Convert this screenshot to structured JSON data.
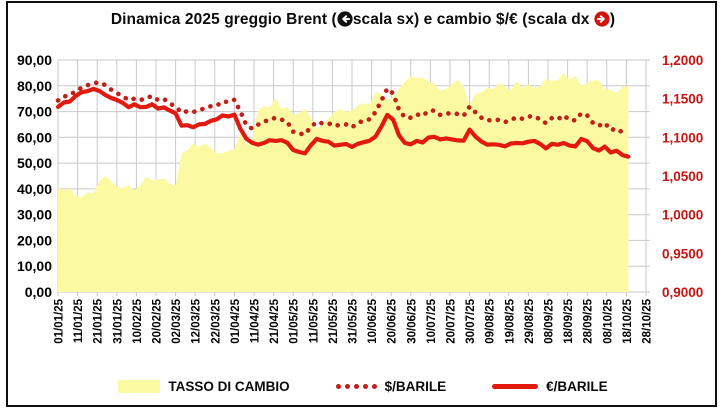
{
  "title": {
    "part1": "Dinamica 2025 greggio Brent (",
    "left_icon": "left-arrow-in-black-circle",
    "part2": "scala sx) e cambio $/€ (scala dx ",
    "right_icon": "right-arrow-in-red-circle",
    "part3": ")"
  },
  "colors": {
    "area": "#FBF9A1",
    "dollar_line": "#C02018",
    "euro_line": "#E2190E",
    "right_axis_text": "#C81412",
    "grid": "#C9C9C9",
    "frame": "#101010"
  },
  "legend": {
    "items": [
      {
        "label": "TASSO DI CAMBIO",
        "marker": "yellow-area"
      },
      {
        "label": "$/BARILE",
        "marker": "red-dotted-line"
      },
      {
        "label": "€/BARILE",
        "marker": "red-solid-line"
      }
    ]
  },
  "chart_data": {
    "type": "combo-area-and-lines",
    "title": "Dinamica 2025 greggio Brent (scala sx) e cambio $/€ (scala dx)",
    "grid": true,
    "legend_position": "bottom",
    "x_axis": {
      "unit": "date (dd/mm/yy), one tick every 10 days",
      "tick_labels": [
        "01/01/25",
        "11/01/25",
        "21/01/25",
        "31/01/25",
        "10/02/25",
        "20/02/25",
        "02/03/25",
        "12/03/25",
        "22/03/25",
        "01/04/25",
        "11/04/25",
        "21/04/25",
        "01/05/25",
        "11/05/25",
        "21/05/25",
        "31/05/25",
        "10/06/25",
        "20/06/25",
        "30/06/25",
        "10/07/25",
        "20/07/25",
        "30/07/25",
        "09/08/25",
        "19/08/25",
        "29/08/25",
        "08/09/25",
        "18/09/25",
        "28/09/25",
        "08/10/25",
        "18/10/25",
        "28/10/25"
      ]
    },
    "y_left": {
      "min": 0,
      "max": 90,
      "step": 10,
      "tick_values": [
        90,
        80,
        70,
        60,
        50,
        40,
        30,
        20,
        10,
        0
      ],
      "tick_labels": [
        "90,00",
        "80,00",
        "70,00",
        "60,00",
        "50,00",
        "40,00",
        "30,00",
        "20,00",
        "10,00",
        "0,00"
      ]
    },
    "y_right": {
      "min": 0.9,
      "max": 1.2,
      "step": 0.05,
      "tick_values": [
        1.2,
        1.15,
        1.1,
        1.05,
        1.0,
        0.95,
        0.9
      ],
      "tick_labels": [
        "1,2000",
        "1,1500",
        "1,1000",
        "1,0500",
        "1,0000",
        "0,9500",
        "0,9000"
      ]
    },
    "x_days": [
      0,
      3,
      6,
      9,
      12,
      15,
      18,
      21,
      24,
      27,
      30,
      33,
      36,
      39,
      42,
      45,
      48,
      51,
      54,
      57,
      60,
      63,
      66,
      69,
      72,
      75,
      78,
      81,
      84,
      87,
      90,
      93,
      96,
      99,
      102,
      105,
      108,
      111,
      114,
      117,
      120,
      123,
      126,
      129,
      132,
      135,
      138,
      141,
      144,
      147,
      150,
      153,
      156,
      159,
      162,
      165,
      168,
      171,
      174,
      177,
      180,
      183,
      186,
      189,
      192,
      195,
      198,
      201,
      204,
      207,
      210,
      213,
      216,
      219,
      222,
      225,
      228,
      231,
      234,
      237,
      240,
      243,
      246,
      249,
      252,
      255,
      258,
      261,
      264,
      267,
      270,
      273,
      276,
      279,
      282,
      285,
      288,
      291
    ],
    "series": [
      {
        "name": "TASSO DI CAMBIO",
        "axis": "right",
        "type": "area",
        "color": "#FBF9A1",
        "values": [
          1.0352,
          1.031,
          1.0345,
          1.0246,
          1.0225,
          1.029,
          1.0273,
          1.043,
          1.0495,
          1.0435,
          1.0364,
          1.0344,
          1.0385,
          1.0308,
          1.0382,
          1.049,
          1.0446,
          1.046,
          1.0466,
          1.04,
          1.0378,
          1.079,
          1.0836,
          1.092,
          1.0878,
          1.0923,
          1.0856,
          1.0796,
          1.0792,
          1.0828,
          1.085,
          1.105,
          1.0906,
          1.0956,
          1.135,
          1.14,
          1.139,
          1.151,
          1.1366,
          1.1392,
          1.1292,
          1.1306,
          1.1372,
          1.1252,
          1.112,
          1.1165,
          1.1242,
          1.1332,
          1.1366,
          1.1332,
          1.1348,
          1.1412,
          1.1442,
          1.1422,
          1.1582,
          1.1562,
          1.1482,
          1.1522,
          1.1622,
          1.1722,
          1.179,
          1.1762,
          1.1772,
          1.1722,
          1.1692,
          1.1602,
          1.1626,
          1.1692,
          1.1742,
          1.1662,
          1.1412,
          1.1562,
          1.1582,
          1.1642,
          1.1622,
          1.1702,
          1.1662,
          1.1602,
          1.1722,
          1.1642,
          1.1682,
          1.1642,
          1.1656,
          1.1762,
          1.1732,
          1.1736,
          1.1832,
          1.1746,
          1.1796,
          1.1666,
          1.1702,
          1.1736,
          1.1742,
          1.1622,
          1.1612,
          1.1572,
          1.1652,
          1.1662
        ]
      },
      {
        "name": "$/BARILE",
        "axis": "left",
        "type": "dotted-line",
        "color": "#C02018",
        "values": [
          74.3,
          75.8,
          76.4,
          77.9,
          79.2,
          80.2,
          81.0,
          81.3,
          80.3,
          78.6,
          77.2,
          75.9,
          74.5,
          75.0,
          74.4,
          75.3,
          76.0,
          74.5,
          74.9,
          73.2,
          71.9,
          69.6,
          70.1,
          69.8,
          70.7,
          71.2,
          72.1,
          72.3,
          73.9,
          73.7,
          74.6,
          70.1,
          64.9,
          63.4,
          64.9,
          65.9,
          67.1,
          67.5,
          66.9,
          66.0,
          62.2,
          61.4,
          61.2,
          64.0,
          66.0,
          65.4,
          65.5,
          64.4,
          64.9,
          65.0,
          63.9,
          65.6,
          66.5,
          67.0,
          69.8,
          74.2,
          78.9,
          77.0,
          70.7,
          67.7,
          67.6,
          68.9,
          68.3,
          70.2,
          70.4,
          68.7,
          69.3,
          69.2,
          69.1,
          68.4,
          71.9,
          69.7,
          67.6,
          66.6,
          66.6,
          66.8,
          65.9,
          66.8,
          67.7,
          67.2,
          68.1,
          68.2,
          66.9,
          65.5,
          67.5,
          67.0,
          68.5,
          66.7,
          66.6,
          69.3,
          68.5,
          65.5,
          64.5,
          65.6,
          62.8,
          63.4,
          61.9,
          61.2
        ]
      },
      {
        "name": "€/BARILE",
        "axis": "left",
        "type": "line",
        "color": "#E2190E",
        "values": [
          71.8,
          73.5,
          73.9,
          76.0,
          77.5,
          77.9,
          78.8,
          78.0,
          76.5,
          75.3,
          74.5,
          73.4,
          71.7,
          72.8,
          71.7,
          71.8,
          72.8,
          71.2,
          71.6,
          70.4,
          69.3,
          64.5,
          64.7,
          63.9,
          65.0,
          65.2,
          66.4,
          67.0,
          68.5,
          68.1,
          68.8,
          63.4,
          59.5,
          57.9,
          57.2,
          57.8,
          58.9,
          58.6,
          58.9,
          57.9,
          55.1,
          54.3,
          53.8,
          56.9,
          59.4,
          58.6,
          58.3,
          56.8,
          57.1,
          57.4,
          56.3,
          57.5,
          58.1,
          58.7,
          60.3,
          64.2,
          68.7,
          66.8,
          60.8,
          57.8,
          57.3,
          58.6,
          58.0,
          59.9,
          60.2,
          59.2,
          59.6,
          59.2,
          58.8,
          58.7,
          63.0,
          60.3,
          58.4,
          57.2,
          57.3,
          57.1,
          56.5,
          57.6,
          57.8,
          57.7,
          58.3,
          58.6,
          57.4,
          55.7,
          57.5,
          57.1,
          57.8,
          56.8,
          56.5,
          59.4,
          58.5,
          55.8,
          54.9,
          56.4,
          54.1,
          54.8,
          53.1,
          52.5
        ]
      }
    ]
  }
}
